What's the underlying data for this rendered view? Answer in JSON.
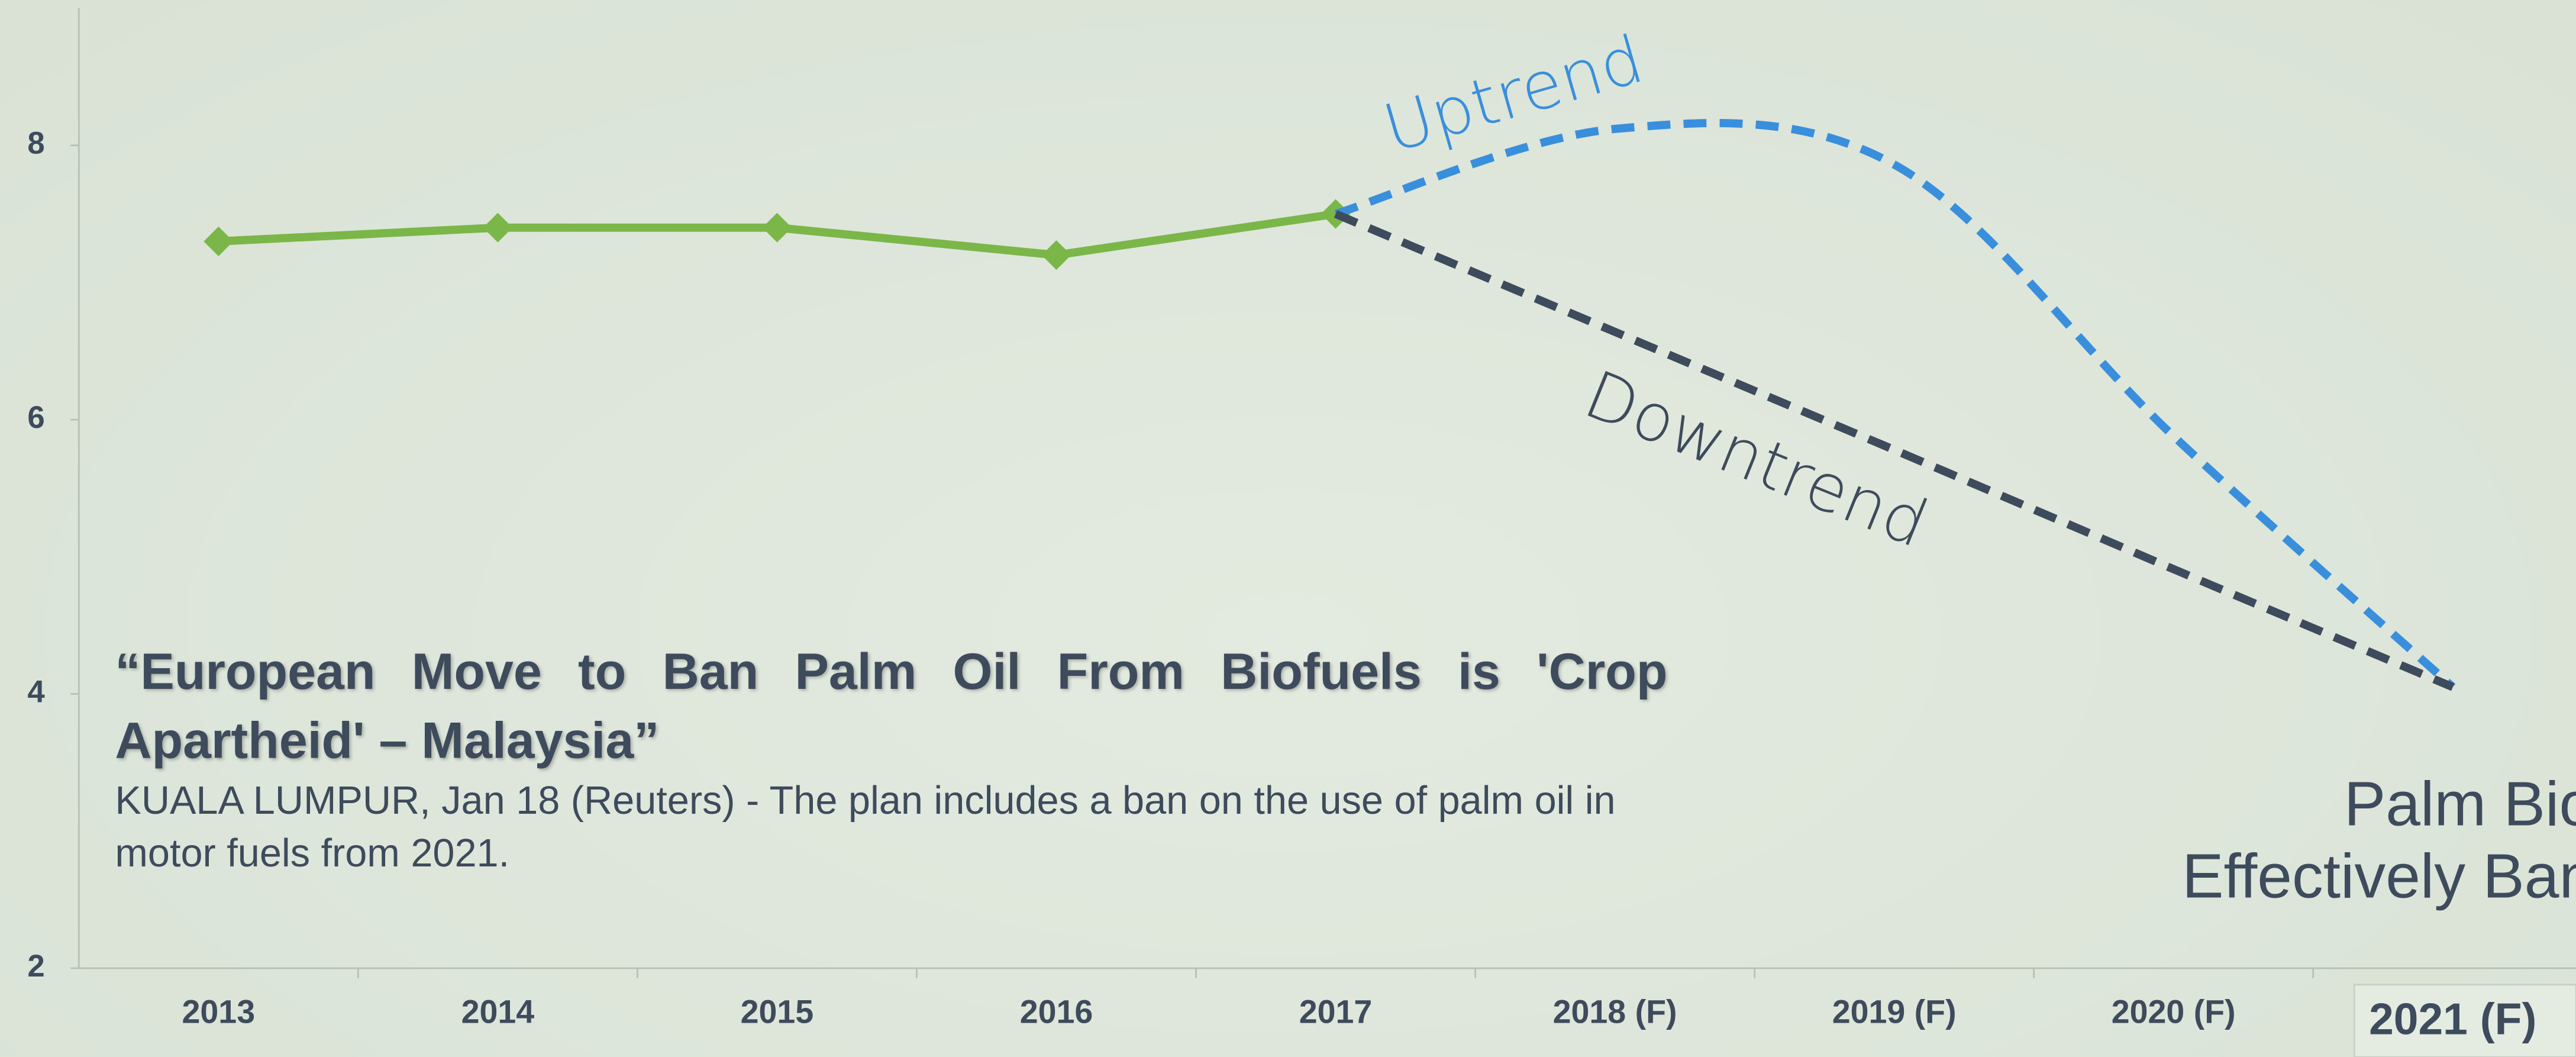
{
  "chart_data": {
    "type": "line",
    "categories": [
      "2013",
      "2014",
      "2015",
      "2016",
      "2017",
      "2018 (F)",
      "2019 (F)",
      "2020 (F)",
      "2021 (F)"
    ],
    "highlighted_category": 8,
    "series": [
      {
        "color": "#7ab648",
        "marker": "diamond",
        "dashed": false,
        "smooth": false,
        "values": [
          7.3,
          7.4,
          7.4,
          7.2,
          7.5,
          null,
          null,
          null,
          null
        ]
      },
      {
        "name": "Uptrend",
        "color": "#3a8fdd",
        "dashed": true,
        "smooth": true,
        "values": [
          null,
          null,
          null,
          null,
          7.5,
          8.12,
          7.86,
          5.88,
          4.05
        ]
      },
      {
        "name": "Downtrend",
        "color": "#3d4b5c",
        "dashed": true,
        "smooth": false,
        "values": [
          null,
          null,
          null,
          null,
          7.5,
          6.64,
          5.78,
          4.91,
          4.05
        ]
      }
    ],
    "ylim": [
      2,
      9
    ],
    "yticks": [
      2,
      4,
      6,
      8
    ],
    "grid": false,
    "annotations": {
      "headline": "“European Move to Ban Palm Oil From Biofuels is 'Crop Apartheid' – Malaysia”",
      "body": "KUALA LUMPUR, Jan 18 (Reuters) - The plan includes a ban on the use of palm oil in motor fuels from 2021.",
      "callout": [
        "Palm Biod",
        "Effectively Bann"
      ]
    }
  }
}
